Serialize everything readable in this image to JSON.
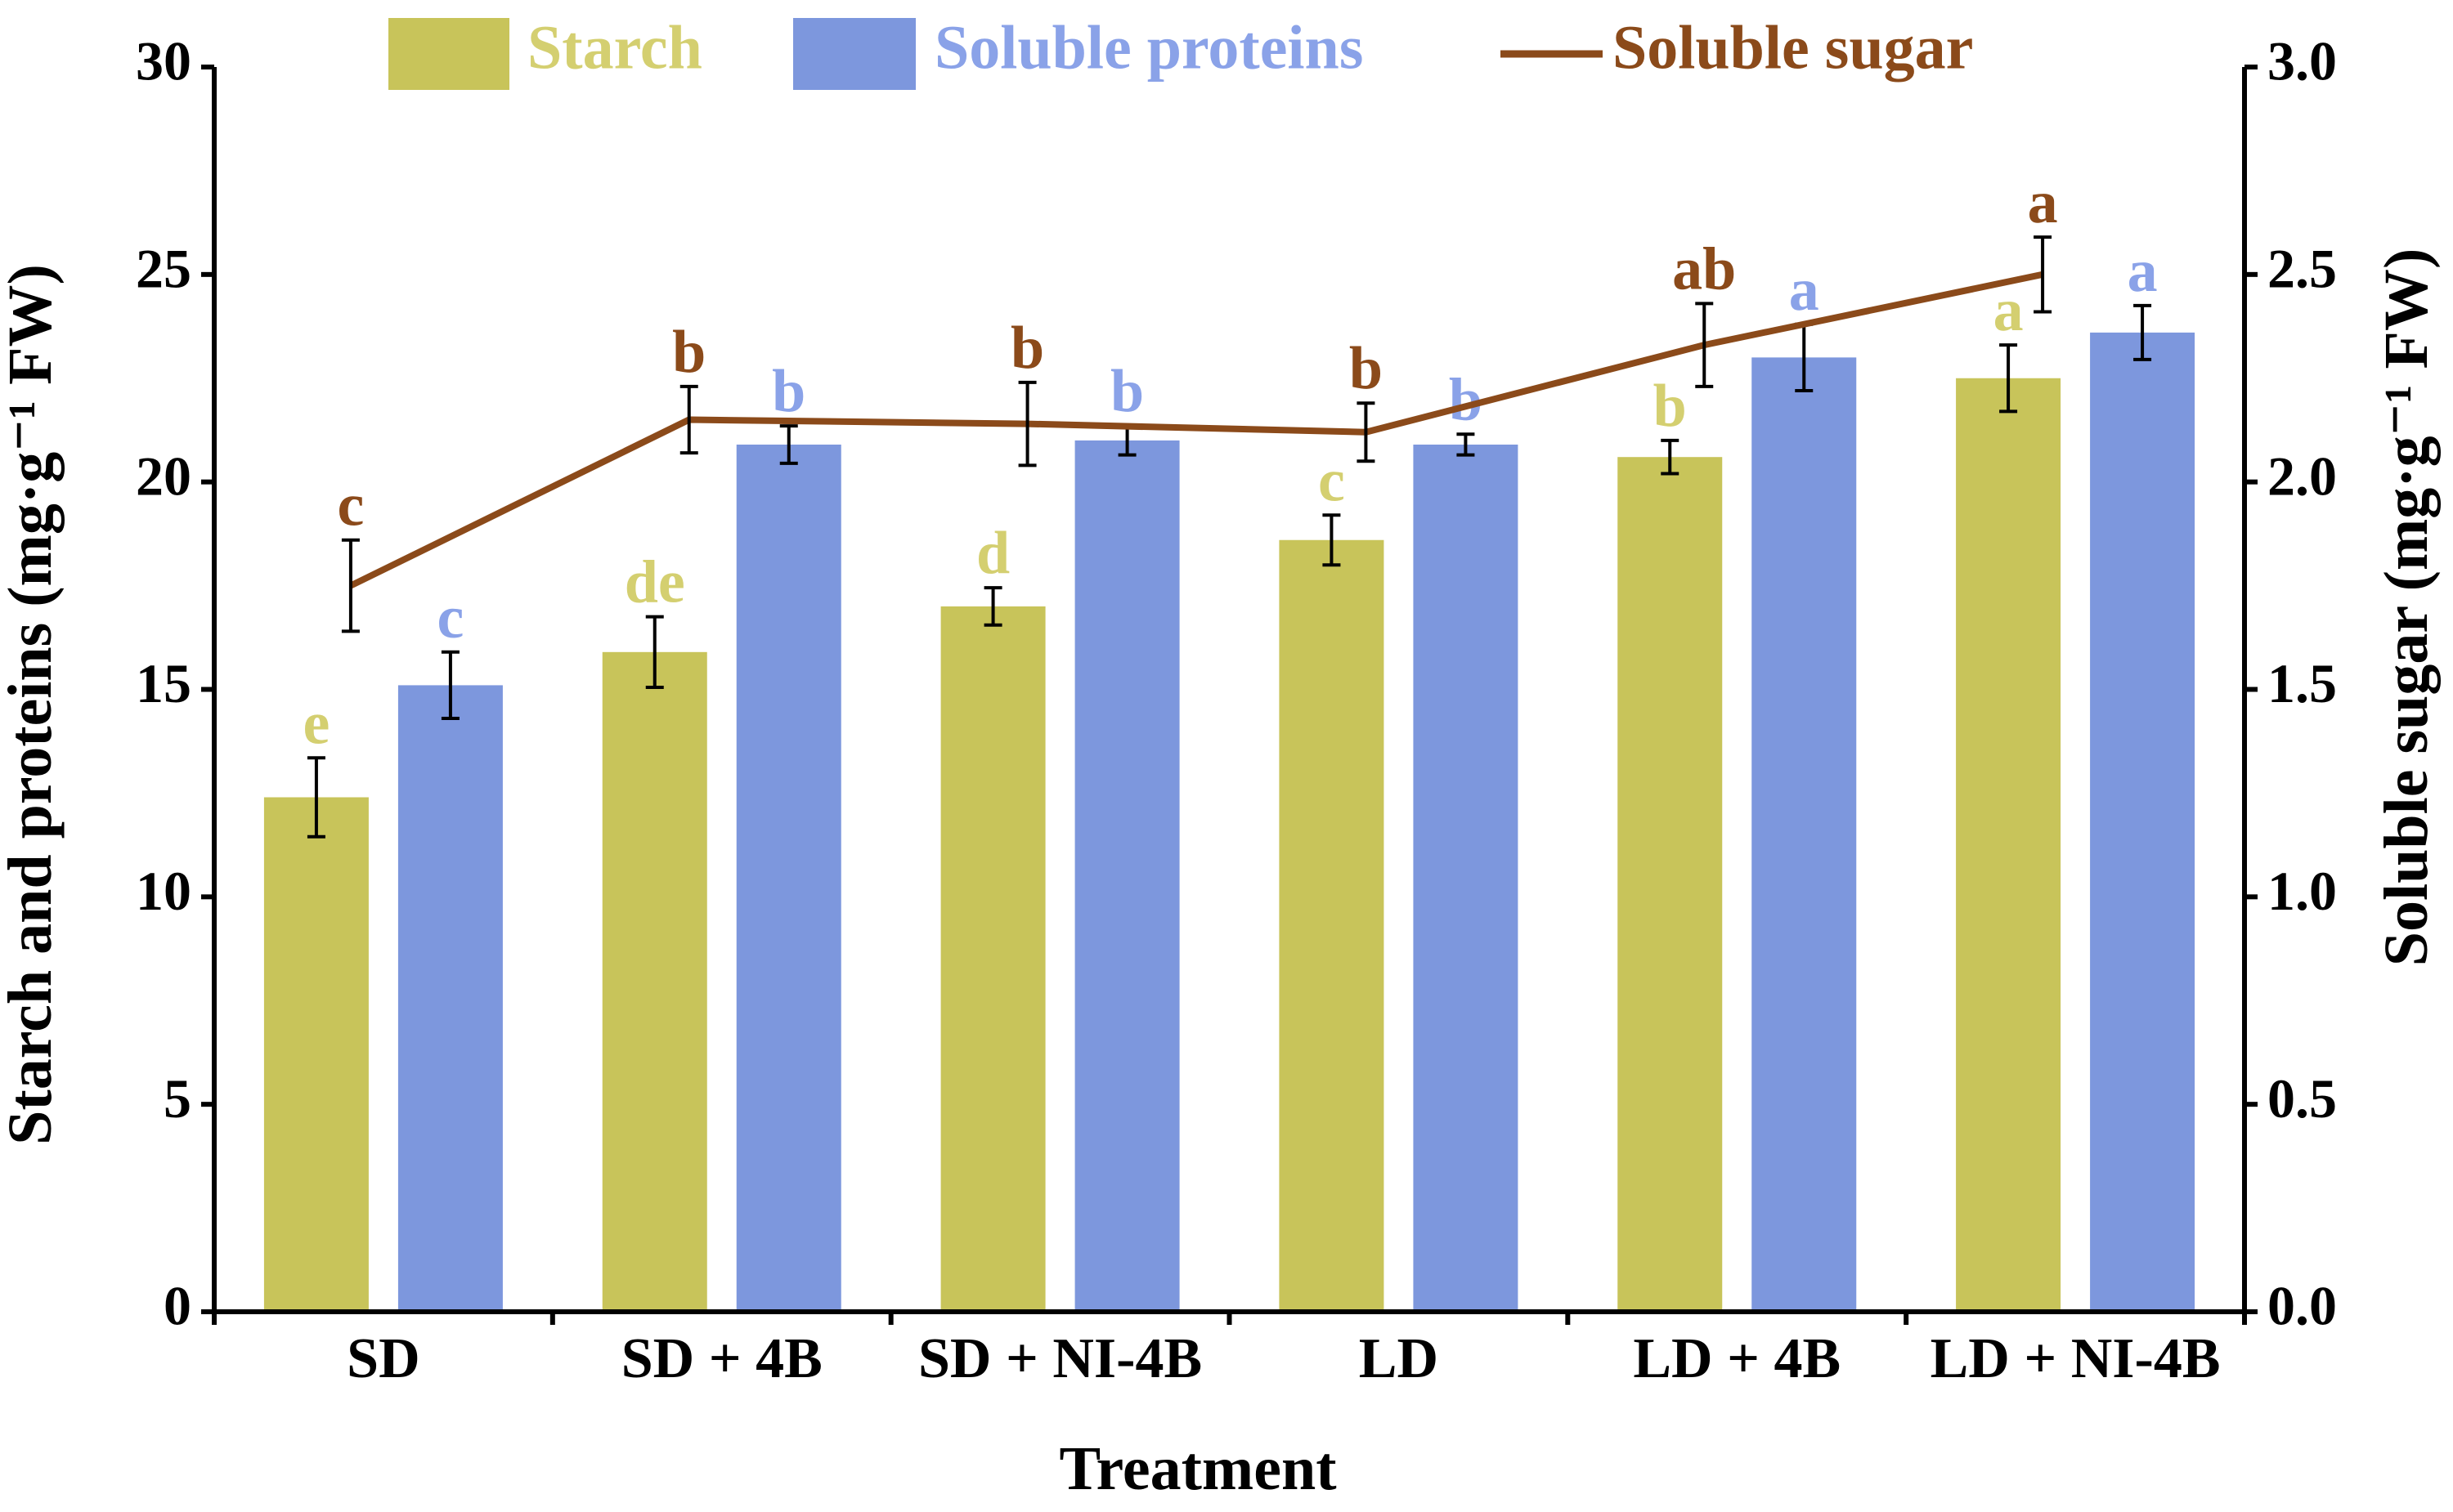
{
  "chart_data": {
    "type": "bar",
    "categories": [
      "SD",
      "SD + 4B",
      "SD + NI-4B",
      "LD",
      "LD + 4B",
      "LD + NI-4B"
    ],
    "series": [
      {
        "name": "Starch",
        "kind": "bar",
        "axis": "left",
        "color": "#C8C45A",
        "label_color": "#D4CF70",
        "values": [
          12.4,
          15.9,
          17.0,
          18.6,
          20.6,
          22.5
        ],
        "errors": [
          0.95,
          0.85,
          0.45,
          0.6,
          0.4,
          0.8
        ],
        "letters": [
          "e",
          "de",
          "d",
          "c",
          "b",
          "a"
        ]
      },
      {
        "name": "Soluble proteins",
        "kind": "bar",
        "axis": "left",
        "color": "#7D97DD",
        "label_color": "#8AA2E8",
        "values": [
          15.1,
          20.9,
          21.0,
          20.9,
          23.0,
          23.6
        ],
        "errors": [
          0.8,
          0.45,
          0.35,
          0.25,
          0.8,
          0.65
        ],
        "letters": [
          "c",
          "b",
          "b",
          "b",
          "a",
          "a"
        ]
      },
      {
        "name": "Soluble sugar",
        "kind": "line",
        "axis": "right",
        "color": "#8B4A1A",
        "label_color": "#8B4A1A",
        "values": [
          1.75,
          2.15,
          2.14,
          2.12,
          2.33,
          2.5
        ],
        "errors": [
          0.11,
          0.08,
          0.1,
          0.07,
          0.1,
          0.09
        ],
        "letters": [
          "c",
          "b",
          "b",
          "b",
          "ab",
          "a"
        ]
      }
    ],
    "xlabel": "Treatment",
    "ylabel": "Starch and proteins (mg·g⁻¹ FW)",
    "ylabel_right": "Soluble sugar (mg·g⁻¹ FW)",
    "ylim": [
      0,
      30
    ],
    "yticks": [
      0,
      5,
      10,
      15,
      20,
      25,
      30
    ],
    "ytick_labels": [
      "0",
      "5",
      "10",
      "15",
      "20",
      "25",
      "30"
    ],
    "ylim_right": [
      0,
      3
    ],
    "yticks_right": [
      0,
      0.5,
      1,
      1.5,
      2,
      2.5,
      3
    ],
    "ytick_labels_right": [
      "0.0",
      "0.5",
      "1.0",
      "1.5",
      "2.0",
      "2.5",
      "3.0"
    ],
    "grid": false,
    "legend": {
      "position": "top",
      "entries": [
        "Starch",
        "Soluble proteins",
        "Soluble sugar"
      ]
    }
  }
}
